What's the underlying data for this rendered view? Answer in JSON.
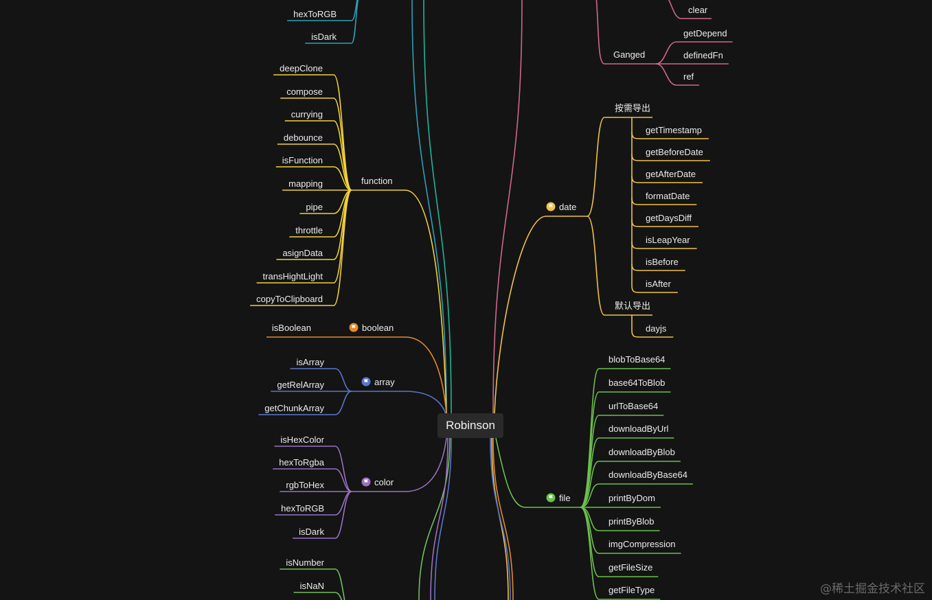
{
  "root": "Robinson",
  "watermark": "@稀土掘金技术社区",
  "colors": {
    "teal": "#2e9fb8",
    "tealGreen": "#1fb59a",
    "function": "#f3d23b",
    "boolean": "#e58a2c",
    "array": "#5a76cc",
    "color": "#9a70c2",
    "number": "#72c05a",
    "pink": "#d0678f",
    "date": "#f2c24a",
    "file": "#6cc04c",
    "text": "#ececec",
    "background": "#141414"
  },
  "branches": {
    "topColor": {
      "children": [
        "hexToRGB",
        "isDark"
      ]
    },
    "function": {
      "label": "function",
      "children": [
        "deepClone",
        "compose",
        "currying",
        "debounce",
        "isFunction",
        "mapping",
        "pipe",
        "throttle",
        "asignData",
        "transHightLight",
        "copyToClipboard"
      ]
    },
    "boolean": {
      "label": "boolean",
      "icon": "flag-icon",
      "children": [
        "isBoolean"
      ]
    },
    "array": {
      "label": "array",
      "icon": "flag-icon",
      "children": [
        "isArray",
        "getRelArray",
        "getChunkArray"
      ]
    },
    "color": {
      "label": "color",
      "icon": "flag-icon",
      "children": [
        "isHexColor",
        "hexToRgba",
        "rgbToHex",
        "hexToRGB",
        "isDark"
      ]
    },
    "number": {
      "children": [
        "isNumber",
        "isNaN"
      ]
    },
    "topPink": {
      "children": [
        "clear"
      ]
    },
    "ganged": {
      "label": "Ganged",
      "children": [
        "getDepend",
        "definedFn",
        "ref"
      ]
    },
    "date": {
      "label": "date",
      "icon": "flag-icon",
      "groups": [
        {
          "label": "按需导出",
          "children": [
            "getTimestamp",
            "getBeforeDate",
            "getAfterDate",
            "formatDate",
            "getDaysDiff",
            "isLeapYear",
            "isBefore",
            "isAfter"
          ]
        },
        {
          "label": "默认导出",
          "children": [
            "dayjs"
          ]
        }
      ]
    },
    "file": {
      "label": "file",
      "icon": "flag-icon",
      "children": [
        "blobToBase64",
        "base64ToBlob",
        "urlToBase64",
        "downloadByUrl",
        "downloadByBlob",
        "downloadByBase64",
        "printByDom",
        "printByBlob",
        "imgCompression",
        "getFileSize",
        "getFileType"
      ]
    }
  }
}
